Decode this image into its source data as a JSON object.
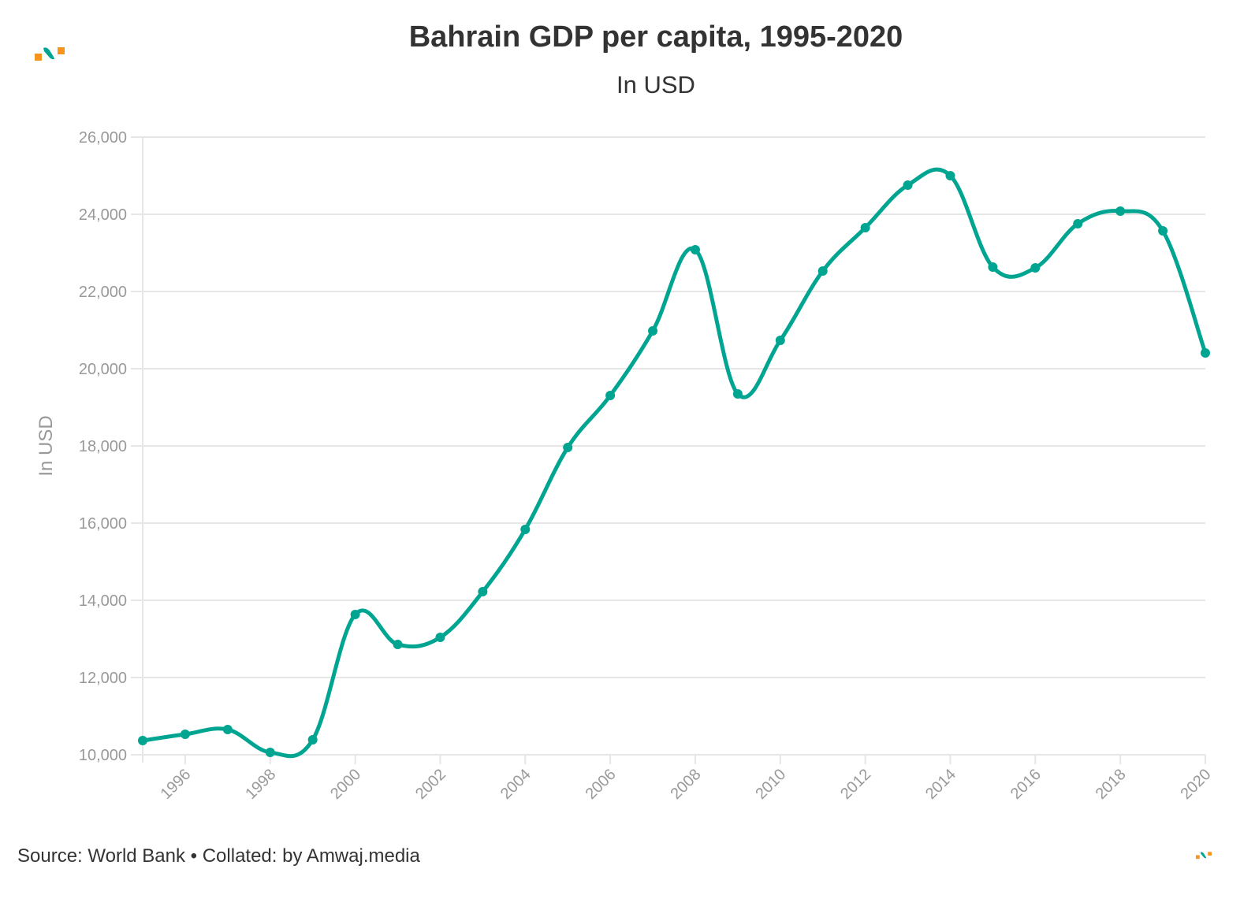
{
  "brand": {
    "logo": "amwaj-logo-icon",
    "teal": "#00a591",
    "orange": "#f7941d"
  },
  "footer": {
    "text": "Source: World Bank • Collated: by Amwaj.media"
  },
  "chart_data": {
    "type": "line",
    "title": "Bahrain GDP per capita, 1995-2020",
    "subtitle": "In USD",
    "xlabel": "",
    "ylabel": "In USD",
    "x": [
      1995,
      1996,
      1997,
      1998,
      1999,
      2000,
      2001,
      2002,
      2003,
      2004,
      2005,
      2006,
      2007,
      2008,
      2009,
      2010,
      2011,
      2012,
      2013,
      2014,
      2015,
      2016,
      2017,
      2018,
      2019,
      2020
    ],
    "series": [
      {
        "name": "GDP per capita (USD)",
        "color": "#00a591",
        "values": [
          10367,
          10531,
          10653,
          10061,
          10388,
          13633,
          12857,
          13041,
          14224,
          15837,
          17959,
          19306,
          20980,
          23082,
          19347,
          20735,
          22531,
          23653,
          24755,
          25000,
          22633,
          22612,
          23755,
          24082,
          23571,
          20408
        ]
      }
    ],
    "xlim": [
      1995,
      2020
    ],
    "ylim": [
      10000,
      26000
    ],
    "yticks": [
      10000,
      12000,
      14000,
      16000,
      18000,
      20000,
      22000,
      24000,
      26000
    ],
    "ytick_labels": [
      "10,000",
      "12,000",
      "14,000",
      "16,000",
      "18,000",
      "20,000",
      "22,000",
      "24,000",
      "26,000"
    ],
    "xticks": [
      1996,
      1998,
      2000,
      2002,
      2004,
      2006,
      2008,
      2010,
      2012,
      2014,
      2016,
      2018,
      2020
    ],
    "xtick_labels": [
      "1996",
      "1998",
      "2000",
      "2002",
      "2004",
      "2006",
      "2008",
      "2010",
      "2012",
      "2014",
      "2016",
      "2018",
      "2020"
    ],
    "grid": true,
    "legend": "none"
  }
}
